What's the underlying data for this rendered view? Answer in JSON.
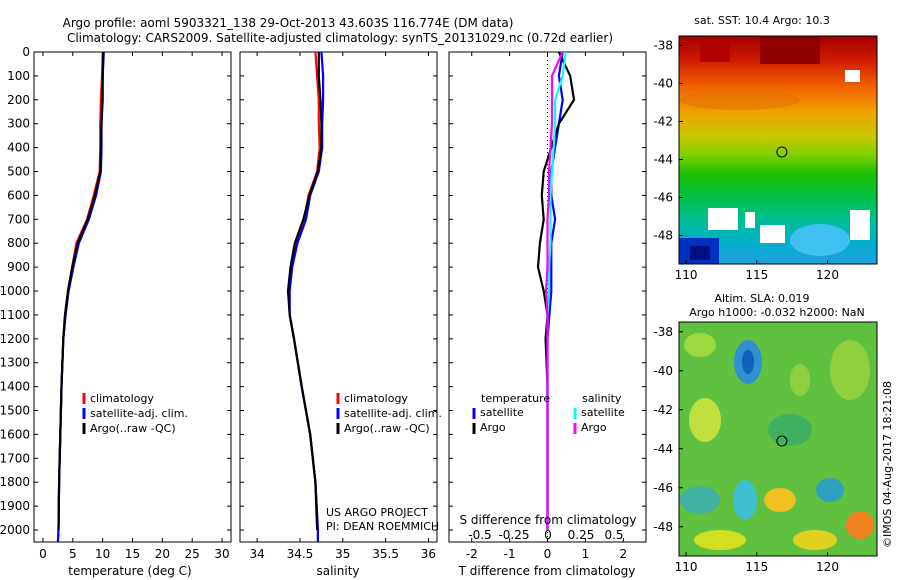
{
  "header": {
    "line1": "Argo profile: aoml 5903321_138 29-Oct-2013 43.603S 116.774E (DM data)",
    "line2": "Climatology: CARS2009. Satellite-adjusted climatology: synTS_20131029.nc (0.72d earlier)"
  },
  "colors": {
    "climatology": "#ff0000",
    "satellite": "#0000ff",
    "argo": "#000000",
    "sal_satellite": "#00ffff",
    "sal_argo": "#ff00ff"
  },
  "chart_data": [
    {
      "type": "line",
      "id": "temperature",
      "xlabel": "temperature (deg C)",
      "ylabel": "",
      "xlim": [
        -1.5,
        31.5
      ],
      "ylim": [
        2050,
        0
      ],
      "xticks": [
        0,
        5,
        10,
        15,
        20,
        25,
        30
      ],
      "yticks": [
        0,
        100,
        200,
        300,
        400,
        500,
        600,
        700,
        800,
        900,
        1000,
        1100,
        1200,
        1300,
        1400,
        1500,
        1600,
        1700,
        1800,
        1900,
        2000
      ],
      "legend": [
        "climatology",
        "satellite-adj. clim.",
        "Argo(..raw -QC)"
      ],
      "series": [
        {
          "name": "climatology",
          "x": [
            10.0,
            9.9,
            9.7,
            9.6,
            9.6,
            9.5,
            8.5,
            7.4,
            5.6,
            4.9,
            4.2,
            3.7,
            3.4,
            3.1,
            2.9,
            2.7,
            2.6,
            2.5
          ],
          "y": [
            0,
            100,
            200,
            300,
            400,
            500,
            600,
            700,
            800,
            900,
            1000,
            1100,
            1200,
            1400,
            1600,
            1800,
            2000,
            2050
          ]
        },
        {
          "name": "satellite-adj. clim.",
          "x": [
            10.2,
            10.0,
            9.9,
            9.8,
            9.8,
            9.7,
            8.9,
            7.7,
            6.0,
            5.1,
            4.3,
            3.8,
            3.4,
            3.1,
            2.9,
            2.7,
            2.6,
            2.5
          ],
          "y": [
            0,
            100,
            200,
            300,
            400,
            500,
            600,
            700,
            800,
            900,
            1000,
            1100,
            1200,
            1400,
            1600,
            1800,
            2000,
            2050
          ]
        },
        {
          "name": "Argo(..raw -QC)",
          "x": [
            10.1,
            10.0,
            10.0,
            9.8,
            9.7,
            9.6,
            8.7,
            7.5,
            5.8,
            4.9,
            4.2,
            3.7,
            3.4,
            3.1,
            2.9,
            2.7,
            2.6
          ],
          "y": [
            0,
            100,
            200,
            300,
            400,
            500,
            600,
            700,
            800,
            900,
            1000,
            1100,
            1200,
            1400,
            1600,
            1800,
            2000
          ]
        }
      ]
    },
    {
      "type": "line",
      "id": "salinity",
      "xlabel": "salinity",
      "xlim": [
        33.8,
        36.1
      ],
      "ylim": [
        2050,
        0
      ],
      "xticks": [
        34,
        34.5,
        35,
        35.5,
        36
      ],
      "legend": [
        "climatology",
        "satellite-adj. clim.",
        "Argo(..raw -QC)"
      ],
      "annotations": [
        "US ARGO PROJECT",
        "PI: DEAN ROEMMICH"
      ],
      "series": [
        {
          "name": "climatology",
          "x": [
            34.68,
            34.7,
            34.72,
            34.72,
            34.73,
            34.7,
            34.6,
            34.55,
            34.45,
            34.4,
            34.37,
            34.38,
            34.43,
            34.52,
            34.62,
            34.68,
            34.71,
            34.71
          ],
          "y": [
            0,
            100,
            200,
            300,
            400,
            500,
            600,
            700,
            800,
            900,
            1000,
            1100,
            1200,
            1400,
            1600,
            1800,
            2000,
            2050
          ]
        },
        {
          "name": "satellite-adj. clim.",
          "x": [
            34.75,
            34.77,
            34.77,
            34.76,
            34.76,
            34.72,
            34.62,
            34.57,
            34.47,
            34.41,
            34.38,
            34.38,
            34.43,
            34.52,
            34.62,
            34.68,
            34.71,
            34.71
          ],
          "y": [
            0,
            100,
            200,
            300,
            400,
            500,
            600,
            700,
            800,
            900,
            1000,
            1100,
            1200,
            1400,
            1600,
            1800,
            2000,
            2050
          ]
        },
        {
          "name": "Argo(..raw -QC)",
          "x": [
            34.72,
            34.72,
            34.74,
            34.75,
            34.75,
            34.71,
            34.61,
            34.54,
            34.44,
            34.39,
            34.36,
            34.38,
            34.43,
            34.52,
            34.62,
            34.68,
            34.7
          ],
          "y": [
            0,
            100,
            200,
            300,
            400,
            500,
            600,
            700,
            800,
            900,
            1000,
            1100,
            1200,
            1400,
            1600,
            1800,
            2000
          ]
        }
      ]
    },
    {
      "type": "line",
      "id": "differences",
      "xlabel": "T difference from climatology",
      "xlabel_top": "S difference from climatology",
      "xlim": [
        -2.6,
        2.6
      ],
      "ylim": [
        2050,
        0
      ],
      "xticks": [
        -2,
        -1,
        0,
        1,
        2
      ],
      "s_ticks": [
        "-0.5",
        "-0.25",
        "0",
        "0.25",
        "0.5"
      ],
      "legend_titles": [
        "temperature",
        "salinity"
      ],
      "legend": [
        "satellite",
        "Argo",
        "satellite",
        "Argo"
      ],
      "series": [
        {
          "name": "temperature satellite",
          "x": [
            0.4,
            0.3,
            0.4,
            0.3,
            0.2,
            0.1,
            0.1,
            0.2,
            0.1,
            0.1,
            0.1,
            0.05,
            0.0,
            0.0,
            0.0,
            0.0,
            0.0
          ],
          "y": [
            0,
            100,
            200,
            300,
            400,
            500,
            600,
            700,
            800,
            900,
            1000,
            1100,
            1200,
            1400,
            1600,
            1800,
            2000
          ]
        },
        {
          "name": "temperature Argo",
          "x": [
            0.3,
            0.6,
            0.7,
            0.3,
            0.1,
            -0.1,
            -0.15,
            -0.1,
            -0.2,
            -0.25,
            -0.1,
            0.0,
            -0.05,
            0.0,
            0.0,
            0.0,
            0.0
          ],
          "y": [
            0,
            100,
            200,
            300,
            400,
            500,
            600,
            700,
            800,
            900,
            1000,
            1100,
            1200,
            1400,
            1600,
            1800,
            2000
          ]
        },
        {
          "name": "salinity satellite",
          "x": [
            0.12,
            0.1,
            0.05,
            0.05,
            0.04,
            0.03,
            0.02,
            0.02,
            0.02,
            0.01,
            0.01,
            0.0,
            0.0,
            0.0,
            0.0,
            0.0,
            0.0
          ],
          "y": [
            0,
            100,
            200,
            300,
            400,
            500,
            600,
            700,
            800,
            900,
            1000,
            1100,
            1200,
            1400,
            1600,
            1800,
            2000
          ]
        },
        {
          "name": "salinity Argo",
          "x": [
            0.1,
            0.03,
            0.03,
            0.03,
            0.02,
            0.01,
            0.01,
            0.0,
            0.0,
            0.0,
            -0.01,
            0.0,
            0.0,
            0.0,
            0.0,
            0.0,
            0.0
          ],
          "y": [
            0,
            100,
            200,
            300,
            400,
            500,
            600,
            700,
            800,
            900,
            1000,
            1100,
            1200,
            1400,
            1600,
            1800,
            2000
          ]
        }
      ]
    },
    {
      "type": "heatmap",
      "id": "sst-map",
      "title": "sat. SST: 10.4  Argo: 10.3",
      "xlim": [
        109.5,
        123.5
      ],
      "ylim": [
        -49.5,
        -37.5
      ],
      "xticks": [
        110,
        115,
        120
      ],
      "yticks": [
        -38,
        -40,
        -42,
        -44,
        -46,
        -48
      ],
      "marker": {
        "lon": 116.774,
        "lat": -43.603
      }
    },
    {
      "type": "heatmap",
      "id": "sla-map",
      "title": "Altim. SLA: 0.019",
      "subtitle": "Argo h1000: -0.032  h2000: NaN",
      "xlim": [
        109.5,
        123.5
      ],
      "ylim": [
        -49.5,
        -37.5
      ],
      "xticks": [
        110,
        115,
        120
      ],
      "yticks": [
        -38,
        -40,
        -42,
        -44,
        -46,
        -48
      ],
      "marker": {
        "lon": 116.774,
        "lat": -43.603
      }
    }
  ],
  "footer": {
    "stamp": "©IMOS 04-Aug-2017 18:21:08"
  }
}
